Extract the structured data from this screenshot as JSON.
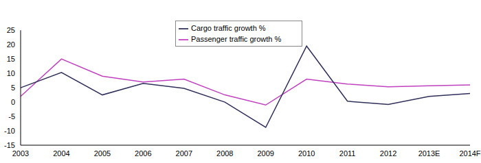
{
  "chart_data": {
    "type": "line",
    "categories": [
      "2003",
      "2004",
      "2005",
      "2006",
      "2007",
      "2008",
      "2009",
      "2010",
      "2011",
      "2012",
      "2013E",
      "2014F"
    ],
    "series": [
      {
        "name": "Passenger traffic growth %",
        "color": "#c040c0",
        "values": [
          2,
          15,
          9,
          7,
          8,
          2.5,
          -1,
          8,
          6.3,
          5.3,
          5.7,
          6
        ]
      },
      {
        "name": "Cargo traffic growth %",
        "color": "#2e2e5a",
        "values": [
          5,
          10.3,
          2.5,
          6.5,
          4.8,
          0,
          -8.8,
          19.5,
          0.3,
          -0.8,
          2,
          3
        ]
      }
    ],
    "ylim": [
      -15,
      25
    ],
    "yticks": [
      -15,
      -10,
      -5,
      0,
      5,
      10,
      15,
      20,
      25
    ],
    "grid": false,
    "legend": "top"
  }
}
